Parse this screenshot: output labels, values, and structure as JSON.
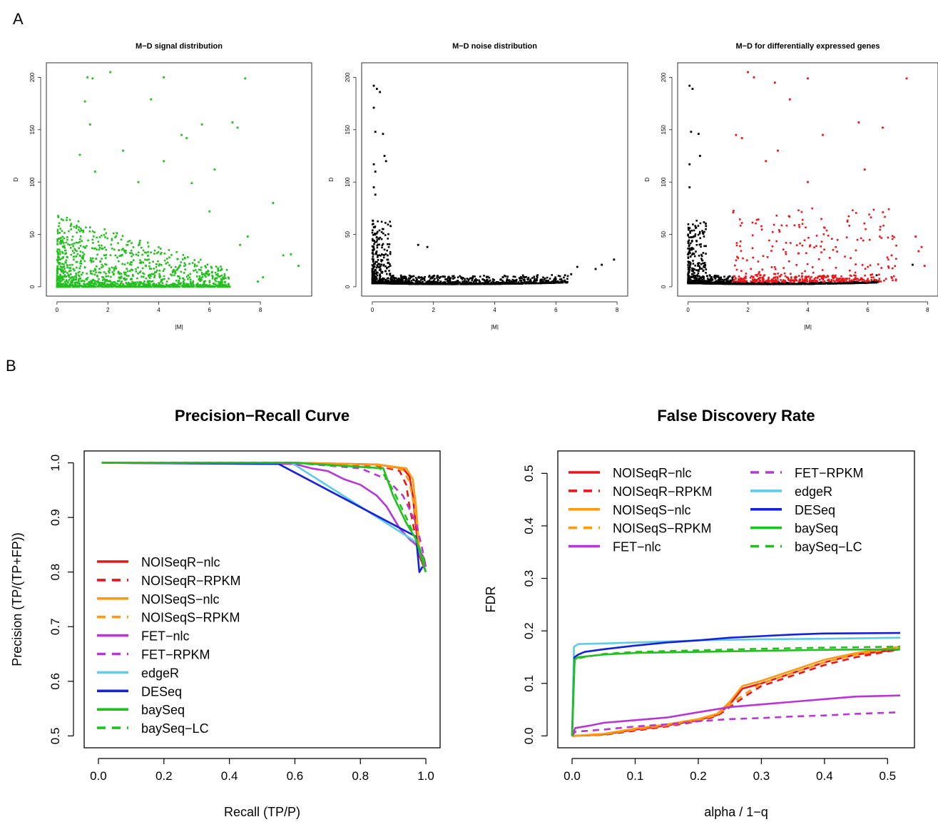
{
  "panels": {
    "a": "A",
    "b": "B"
  },
  "chart_data": [
    {
      "type": "scatter",
      "title": "M−D signal distribution",
      "xlabel": "|M|",
      "ylabel": "D",
      "xlim": [
        0,
        9.6
      ],
      "ylim": [
        0,
        205
      ],
      "xticks": [
        "0",
        "2",
        "4",
        "6",
        "8"
      ],
      "yticks": [
        "0",
        "50",
        "100",
        "150",
        "200"
      ],
      "series": [
        {
          "color": "#22c01e",
          "points": [
            [
              1.2,
              200
            ],
            [
              1.4,
              199
            ],
            [
              4.2,
              200
            ],
            [
              7.4,
              199
            ],
            [
              2.1,
              205
            ],
            [
              3.7,
              179
            ],
            [
              1.1,
              177
            ],
            [
              1.3,
              155
            ],
            [
              5.7,
              155
            ],
            [
              6.9,
              157
            ],
            [
              7.1,
              152
            ],
            [
              4.9,
              145
            ],
            [
              5.1,
              142
            ],
            [
              2.6,
              130
            ],
            [
              0.9,
              126
            ],
            [
              1.5,
              110
            ],
            [
              4.2,
              120
            ],
            [
              6.2,
              112
            ],
            [
              5.3,
              99
            ],
            [
              3.2,
              100
            ],
            [
              8.5,
              80
            ],
            [
              6.0,
              72
            ],
            [
              7.5,
              48
            ],
            [
              7.2,
              40
            ],
            [
              9.2,
              31
            ],
            [
              9.5,
              20
            ],
            [
              8.9,
              30
            ],
            [
              8.1,
              9
            ],
            [
              7.9,
              5
            ]
          ]
        }
      ],
      "note_cloud": "dense cloud of points with |M| 0–7 and D 0–60"
    },
    {
      "type": "scatter",
      "title": "M−D noise distribution",
      "xlabel": "|M|",
      "ylabel": "D",
      "xlim": [
        0,
        8
      ],
      "ylim": [
        0,
        205
      ],
      "xticks": [
        "0",
        "2",
        "4",
        "6",
        "8"
      ],
      "yticks": [
        "0",
        "50",
        "100",
        "150",
        "200"
      ],
      "series": [
        {
          "color": "#000000",
          "points": [
            [
              0.05,
              192
            ],
            [
              0.15,
              189
            ],
            [
              0.25,
              186
            ],
            [
              0.05,
              171
            ],
            [
              0.1,
              148
            ],
            [
              0.35,
              146
            ],
            [
              0.4,
              125
            ],
            [
              0.45,
              120
            ],
            [
              0.05,
              117
            ],
            [
              0.1,
              110
            ],
            [
              0.05,
              95
            ],
            [
              0.1,
              88
            ],
            [
              0.6,
              58
            ],
            [
              1.5,
              40
            ],
            [
              0.5,
              30
            ],
            [
              1.8,
              38
            ],
            [
              7.3,
              17
            ],
            [
              7.5,
              21
            ],
            [
              7.9,
              26
            ],
            [
              6.7,
              19
            ],
            [
              6.3,
              11
            ],
            [
              6.5,
              12
            ]
          ]
        }
      ]
    },
    {
      "type": "scatter",
      "title": "M−D for differentially expressed genes",
      "xlabel": "|M|",
      "ylabel": "D",
      "xlim": [
        0,
        8
      ],
      "ylim": [
        0,
        205
      ],
      "xticks": [
        "0",
        "2",
        "4",
        "6",
        "8"
      ],
      "yticks": [
        "0",
        "50",
        "100",
        "150",
        "200"
      ],
      "series": [
        {
          "name": "",
          "color": "#000000",
          "points": [
            [
              0.05,
              192
            ],
            [
              0.15,
              189
            ],
            [
              0.1,
              148
            ],
            [
              0.35,
              146
            ],
            [
              0.4,
              125
            ],
            [
              0.05,
              117
            ],
            [
              0.05,
              95
            ],
            [
              0.6,
              58
            ],
            [
              6.3,
              11
            ],
            [
              7.5,
              21
            ]
          ]
        },
        {
          "name": "",
          "color": "#e8161b",
          "points": [
            [
              2.0,
              205
            ],
            [
              2.2,
              200
            ],
            [
              2.9,
              195
            ],
            [
              4.0,
              199
            ],
            [
              7.3,
              199
            ],
            [
              3.4,
              179
            ],
            [
              1.6,
              145
            ],
            [
              1.8,
              142
            ],
            [
              5.7,
              157
            ],
            [
              6.5,
              152
            ],
            [
              4.5,
              145
            ],
            [
              3.0,
              130
            ],
            [
              2.6,
              120
            ],
            [
              4.0,
              100
            ],
            [
              5.9,
              112
            ],
            [
              7.6,
              48
            ],
            [
              7.8,
              38
            ],
            [
              7.7,
              34
            ],
            [
              6.8,
              30
            ],
            [
              7.9,
              20
            ]
          ]
        }
      ]
    },
    {
      "type": "line",
      "title": "Precision−Recall Curve",
      "xlabel": "Recall (TP/P)",
      "ylabel": "Precision (TP/(TP+FP))",
      "xlim": [
        0.0,
        1.0
      ],
      "ylim": [
        0.5,
        1.0
      ],
      "xticks": [
        "0.0",
        "0.2",
        "0.4",
        "0.6",
        "0.8",
        "1.0"
      ],
      "yticks": [
        "0.5",
        "0.6",
        "0.7",
        "0.8",
        "0.9",
        "1.0"
      ],
      "legend_position": "bottom-left",
      "series": [
        {
          "name": "NOISeqR−nlc",
          "color": "#e8161b",
          "dash": "solid",
          "x": [
            0.01,
            0.6,
            0.85,
            0.93,
            0.95,
            0.96,
            0.97,
            0.98,
            1.0
          ],
          "y": [
            1.0,
            1.0,
            0.997,
            0.99,
            0.975,
            0.94,
            0.88,
            0.83,
            0.8
          ]
        },
        {
          "name": "NOISeqR−RPKM",
          "color": "#e8161b",
          "dash": "dashed",
          "x": [
            0.01,
            0.6,
            0.85,
            0.92,
            0.94,
            0.95,
            0.97,
            0.98,
            1.0
          ],
          "y": [
            1.0,
            1.0,
            0.995,
            0.985,
            0.96,
            0.92,
            0.86,
            0.83,
            0.81
          ]
        },
        {
          "name": "NOISeqS−nlc",
          "color": "#ff9a12",
          "dash": "solid",
          "x": [
            0.01,
            0.6,
            0.85,
            0.94,
            0.96,
            0.97,
            0.98,
            1.0
          ],
          "y": [
            1.0,
            1.0,
            0.997,
            0.99,
            0.97,
            0.92,
            0.84,
            0.81
          ]
        },
        {
          "name": "NOISeqS−RPKM",
          "color": "#ff9a12",
          "dash": "dashed",
          "x": [
            0.01,
            0.6,
            0.85,
            0.93,
            0.95,
            0.97,
            0.98,
            1.0
          ],
          "y": [
            1.0,
            1.0,
            0.996,
            0.987,
            0.965,
            0.9,
            0.84,
            0.82
          ]
        },
        {
          "name": "FET−nlc",
          "color": "#b737d6",
          "dash": "solid",
          "x": [
            0.01,
            0.6,
            0.65,
            0.7,
            0.75,
            0.8,
            0.85,
            0.88,
            0.9,
            0.92,
            0.95,
            0.97,
            0.99,
            1.0
          ],
          "y": [
            1.0,
            0.998,
            0.99,
            0.985,
            0.97,
            0.96,
            0.94,
            0.92,
            0.9,
            0.88,
            0.86,
            0.85,
            0.83,
            0.81
          ]
        },
        {
          "name": "FET−RPKM",
          "color": "#b737d6",
          "dash": "dashed",
          "x": [
            0.01,
            0.6,
            0.7,
            0.8,
            0.88,
            0.93,
            0.97,
            0.99,
            1.0
          ],
          "y": [
            1.0,
            1.0,
            0.995,
            0.99,
            0.97,
            0.94,
            0.89,
            0.84,
            0.81
          ]
        },
        {
          "name": "edgeR",
          "color": "#5fcbe8",
          "dash": "solid",
          "x": [
            0.01,
            0.59,
            0.97,
            0.99,
            1.0
          ],
          "y": [
            1.0,
            1.0,
            0.855,
            0.82,
            0.8
          ]
        },
        {
          "name": "DESeq",
          "color": "#1622d8",
          "dash": "solid",
          "x": [
            0.01,
            0.55,
            0.97,
            0.98,
            0.99
          ],
          "y": [
            1.0,
            0.998,
            0.865,
            0.8,
            0.81
          ]
        },
        {
          "name": "baySeq",
          "color": "#22c01e",
          "dash": "solid",
          "x": [
            0.01,
            0.6,
            0.87,
            0.9,
            0.94,
            0.97,
            0.98,
            0.99,
            1.0
          ],
          "y": [
            1.0,
            1.0,
            0.99,
            0.94,
            0.89,
            0.86,
            0.84,
            0.82,
            0.8
          ]
        },
        {
          "name": "baySeq−LC",
          "color": "#22c01e",
          "dash": "dashed",
          "x": [
            0.01,
            0.6,
            0.86,
            0.9,
            0.94,
            0.97,
            0.99,
            1.0
          ],
          "y": [
            1.0,
            1.0,
            0.99,
            0.95,
            0.9,
            0.86,
            0.83,
            0.81
          ]
        }
      ]
    },
    {
      "type": "line",
      "title": "False Discovery Rate",
      "xlabel": "alpha / 1−q",
      "ylabel": "FDR",
      "xlim": [
        0.0,
        0.52
      ],
      "ylim": [
        0.0,
        0.52
      ],
      "xticks": [
        "0.0",
        "0.1",
        "0.2",
        "0.3",
        "0.4",
        "0.5"
      ],
      "yticks": [
        "0.0",
        "0.1",
        "0.2",
        "0.3",
        "0.4",
        "0.5"
      ],
      "legend_position": "top-left",
      "series": [
        {
          "name": "NOISeqR−nlc",
          "color": "#e8161b",
          "dash": "solid",
          "x": [
            0,
            0.05,
            0.1,
            0.15,
            0.2,
            0.23,
            0.25,
            0.27,
            0.3,
            0.35,
            0.4,
            0.45,
            0.52
          ],
          "y": [
            0.0,
            0.003,
            0.012,
            0.02,
            0.03,
            0.04,
            0.06,
            0.09,
            0.1,
            0.12,
            0.14,
            0.155,
            0.165
          ]
        },
        {
          "name": "NOISeqR−RPKM",
          "color": "#e8161b",
          "dash": "dashed",
          "x": [
            0,
            0.05,
            0.1,
            0.15,
            0.2,
            0.23,
            0.25,
            0.28,
            0.3,
            0.35,
            0.4,
            0.45,
            0.52
          ],
          "y": [
            0.0,
            0.002,
            0.01,
            0.018,
            0.028,
            0.038,
            0.055,
            0.08,
            0.095,
            0.115,
            0.135,
            0.15,
            0.165
          ]
        },
        {
          "name": "NOISeqS−nlc",
          "color": "#ff9a12",
          "dash": "solid",
          "x": [
            0,
            0.05,
            0.1,
            0.15,
            0.2,
            0.23,
            0.25,
            0.27,
            0.3,
            0.35,
            0.4,
            0.45,
            0.52
          ],
          "y": [
            0.0,
            0.004,
            0.014,
            0.022,
            0.032,
            0.042,
            0.065,
            0.095,
            0.105,
            0.125,
            0.145,
            0.158,
            0.17
          ]
        },
        {
          "name": "NOISeqS−RPKM",
          "color": "#ff9a12",
          "dash": "dashed",
          "x": [
            0,
            0.05,
            0.1,
            0.15,
            0.2,
            0.23,
            0.25,
            0.28,
            0.3,
            0.35,
            0.4,
            0.45,
            0.52
          ],
          "y": [
            0.0,
            0.003,
            0.012,
            0.02,
            0.03,
            0.04,
            0.06,
            0.085,
            0.1,
            0.12,
            0.14,
            0.155,
            0.168
          ]
        },
        {
          "name": "FET−nlc",
          "color": "#b737d6",
          "dash": "solid",
          "x": [
            0,
            0.005,
            0.03,
            0.05,
            0.1,
            0.15,
            0.2,
            0.25,
            0.3,
            0.35,
            0.4,
            0.45,
            0.52
          ],
          "y": [
            0.0,
            0.015,
            0.02,
            0.025,
            0.03,
            0.035,
            0.045,
            0.055,
            0.06,
            0.065,
            0.07,
            0.075,
            0.077
          ]
        },
        {
          "name": "FET−RPKM",
          "color": "#b737d6",
          "dash": "dashed",
          "x": [
            0,
            0.005,
            0.05,
            0.1,
            0.15,
            0.2,
            0.25,
            0.3,
            0.35,
            0.4,
            0.45,
            0.52
          ],
          "y": [
            0.0,
            0.008,
            0.012,
            0.018,
            0.022,
            0.028,
            0.032,
            0.034,
            0.037,
            0.039,
            0.042,
            0.045
          ]
        },
        {
          "name": "edgeR",
          "color": "#5fcbe8",
          "dash": "solid",
          "x": [
            0,
            0.003,
            0.01,
            0.05,
            0.1,
            0.2,
            0.3,
            0.4,
            0.52
          ],
          "y": [
            0.0,
            0.17,
            0.175,
            0.176,
            0.178,
            0.182,
            0.184,
            0.185,
            0.187
          ]
        },
        {
          "name": "DESeq",
          "color": "#1622d8",
          "dash": "solid",
          "x": [
            0,
            0.004,
            0.01,
            0.02,
            0.05,
            0.1,
            0.15,
            0.2,
            0.25,
            0.3,
            0.35,
            0.4,
            0.52
          ],
          "y": [
            0.0,
            0.15,
            0.155,
            0.16,
            0.165,
            0.172,
            0.178,
            0.182,
            0.187,
            0.19,
            0.193,
            0.195,
            0.196
          ]
        },
        {
          "name": "baySeq",
          "color": "#22c01e",
          "dash": "solid",
          "x": [
            0,
            0.004,
            0.01,
            0.05,
            0.1,
            0.2,
            0.3,
            0.4,
            0.52
          ],
          "y": [
            0.0,
            0.145,
            0.15,
            0.155,
            0.158,
            0.16,
            0.162,
            0.164,
            0.165
          ]
        },
        {
          "name": "baySeq−LC",
          "color": "#22c01e",
          "dash": "dashed",
          "x": [
            0,
            0.004,
            0.01,
            0.05,
            0.1,
            0.2,
            0.3,
            0.4,
            0.52
          ],
          "y": [
            0.0,
            0.14,
            0.148,
            0.156,
            0.16,
            0.163,
            0.166,
            0.168,
            0.17
          ]
        }
      ]
    }
  ]
}
